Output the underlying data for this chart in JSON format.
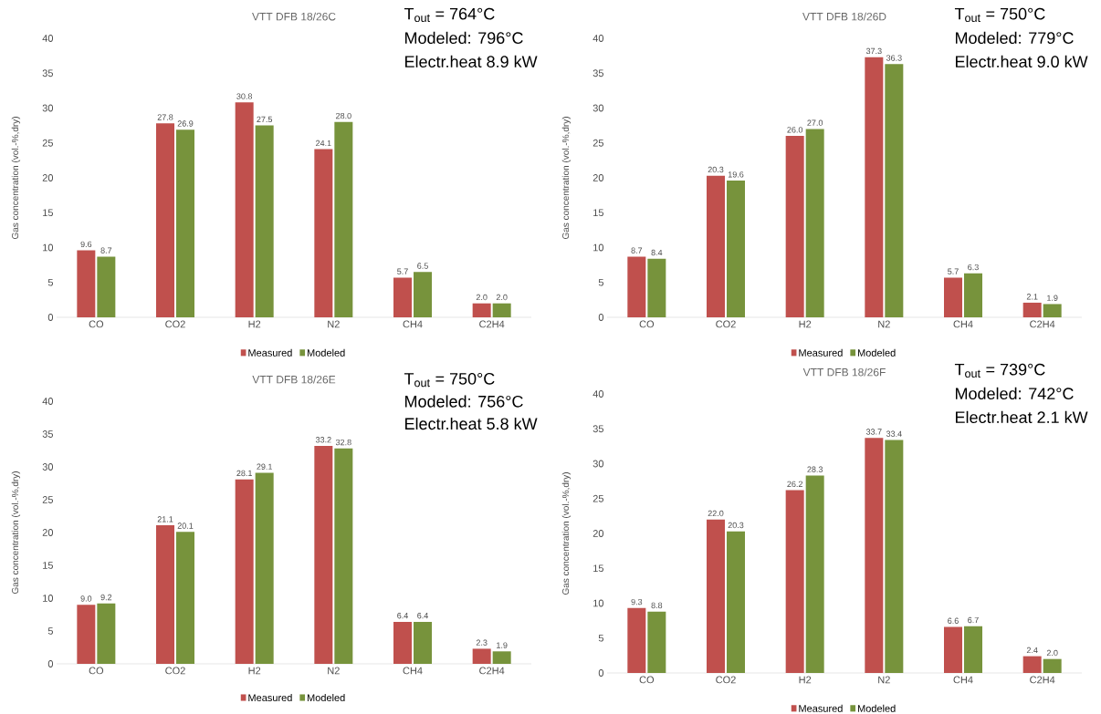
{
  "chart_data": [
    {
      "type": "bar",
      "title": "VTT DFB 18/26C",
      "ylabel": "Gas concentration (vol.-%,dry)",
      "categories": [
        "CO",
        "CO2",
        "H2",
        "N2",
        "CH4",
        "C2H4"
      ],
      "series": [
        {
          "name": "Measured",
          "color": "#c0504d",
          "values": [
            9.6,
            27.8,
            30.8,
            24.1,
            5.7,
            2.0
          ],
          "value_labels": [
            "9.6",
            "27.8",
            "30.8",
            "24.1",
            "5.7",
            "2.0"
          ]
        },
        {
          "name": "Modeled",
          "color": "#77933c",
          "values": [
            8.7,
            26.9,
            27.5,
            28.0,
            6.5,
            2.0
          ],
          "value_labels": [
            "8.7",
            "26.9",
            "27.5",
            "28.0",
            "6.5",
            "2.0"
          ]
        }
      ],
      "ylim": [
        0,
        40
      ],
      "yticks": [
        0,
        5,
        10,
        15,
        20,
        25,
        30,
        35,
        40
      ],
      "legend": "bottom",
      "annotations": [
        "T$_{out}$ = 764°C",
        "Modeled: 796°C",
        "Electr.heat 8.9 kW"
      ]
    },
    {
      "type": "bar",
      "title": "VTT DFB 18/26D",
      "ylabel": "Gas concentration (vol.-%,dry)",
      "categories": [
        "CO",
        "CO2",
        "H2",
        "N2",
        "CH4",
        "C2H4"
      ],
      "series": [
        {
          "name": "Measured",
          "color": "#c0504d",
          "values": [
            8.7,
            20.3,
            26.0,
            37.3,
            5.7,
            2.1
          ],
          "value_labels": [
            "8.7",
            "20.3",
            "26.0",
            "37.3",
            "5.7",
            "2.1"
          ]
        },
        {
          "name": "Modeled",
          "color": "#77933c",
          "values": [
            8.4,
            19.6,
            27.0,
            36.3,
            6.3,
            1.9
          ],
          "value_labels": [
            "8.4",
            "19.6",
            "27.0",
            "36.3",
            "6.3",
            "1.9"
          ]
        }
      ],
      "ylim": [
        0,
        40
      ],
      "yticks": [
        0,
        5,
        10,
        15,
        20,
        25,
        30,
        35,
        40
      ],
      "legend": "bottom",
      "annotations": [
        "T$_{out}$ = 750°C",
        "Modeled: 779°C",
        "Electr.heat 9.0 kW"
      ]
    },
    {
      "type": "bar",
      "title": "VTT DFB 18/26E",
      "ylabel": "Gas concentration (vol.-%,dry)",
      "categories": [
        "CO",
        "CO2",
        "H2",
        "N2",
        "CH4",
        "C2H4"
      ],
      "series": [
        {
          "name": "Measured",
          "color": "#c0504d",
          "values": [
            9.0,
            21.1,
            28.1,
            33.2,
            6.4,
            2.3
          ],
          "value_labels": [
            "9.0",
            "21.1",
            "28.1",
            "33.2",
            "6.4",
            "2.3"
          ]
        },
        {
          "name": "Modeled",
          "color": "#77933c",
          "values": [
            9.2,
            20.1,
            29.1,
            32.8,
            6.4,
            1.9
          ],
          "value_labels": [
            "9.2",
            "20.1",
            "29.1",
            "32.8",
            "6.4",
            "1.9"
          ]
        }
      ],
      "ylim": [
        0,
        40
      ],
      "yticks": [
        0,
        5,
        10,
        15,
        20,
        25,
        30,
        35,
        40
      ],
      "legend": "bottom",
      "annotations": [
        "T$_{out}$ = 750°C",
        "Modeled: 756°C",
        "Electr.heat 5.8 kW"
      ]
    },
    {
      "type": "bar",
      "title": "VTT DFB 18/26F",
      "ylabel": "Gas concentration (vol.-%,dry)",
      "categories": [
        "CO",
        "CO2",
        "H2",
        "N2",
        "CH4",
        "C2H4"
      ],
      "series": [
        {
          "name": "Measured",
          "color": "#c0504d",
          "values": [
            9.3,
            22.0,
            26.2,
            33.7,
            6.6,
            2.4
          ],
          "value_labels": [
            "9.3",
            "22.0",
            "26.2",
            "33.7",
            "6.6",
            "2.4"
          ]
        },
        {
          "name": "Modeled",
          "color": "#77933c",
          "values": [
            8.8,
            20.3,
            28.3,
            33.4,
            6.7,
            2.0
          ],
          "value_labels": [
            "8.8",
            "20.3",
            "28.3",
            "33.4",
            "6.7",
            "2.0"
          ]
        }
      ],
      "ylim": [
        0,
        40
      ],
      "yticks": [
        0,
        5,
        10,
        15,
        20,
        25,
        30,
        35,
        40
      ],
      "legend": "bottom",
      "annotations": [
        "T$_{out}$ = 739°C",
        "Modeled: 742°C",
        "Electr.heat 2.1 kW"
      ]
    }
  ]
}
